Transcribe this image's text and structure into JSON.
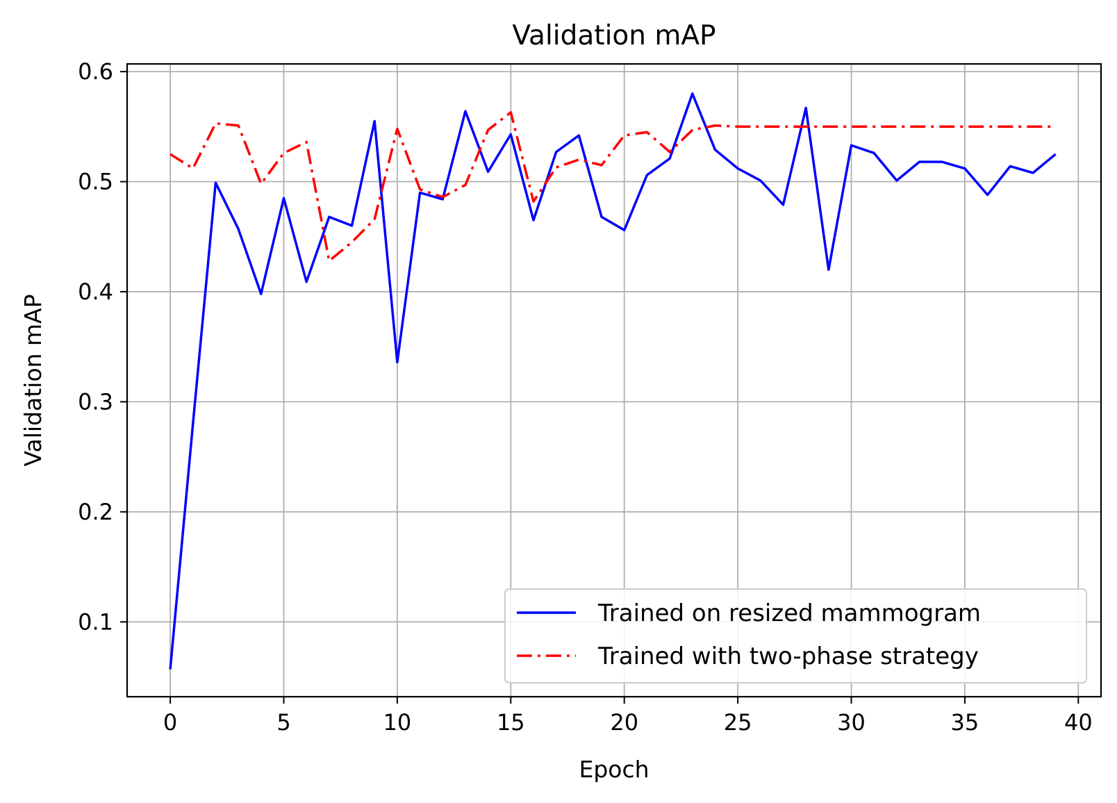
{
  "chart_data": {
    "type": "line",
    "title": "Validation mAP",
    "xlabel": "Epoch",
    "ylabel": "Validation mAP",
    "xlim": [
      -1.9,
      41.0
    ],
    "ylim": [
      0.032,
      0.607
    ],
    "xticks": [
      0,
      5,
      10,
      15,
      20,
      25,
      30,
      35,
      40
    ],
    "xtick_labels": [
      "0",
      "5",
      "10",
      "15",
      "20",
      "25",
      "30",
      "35",
      "40"
    ],
    "yticks": [
      0.1,
      0.2,
      0.3,
      0.4,
      0.5,
      0.6
    ],
    "ytick_labels": [
      "0.1",
      "0.2",
      "0.3",
      "0.4",
      "0.5",
      "0.6"
    ],
    "grid": true,
    "legend_position": "lower-right",
    "x": [
      0,
      1,
      2,
      3,
      4,
      5,
      6,
      7,
      8,
      9,
      10,
      11,
      12,
      13,
      14,
      15,
      16,
      17,
      18,
      19,
      20,
      21,
      22,
      23,
      24,
      25,
      26,
      27,
      28,
      29,
      30,
      31,
      32,
      33,
      34,
      35,
      36,
      37,
      38,
      39
    ],
    "series": [
      {
        "name": "Trained on resized mammogram",
        "color": "#0000ff",
        "linestyle": "solid",
        "values": [
          0.057,
          0.28,
          0.499,
          0.457,
          0.398,
          0.485,
          0.409,
          0.468,
          0.46,
          0.555,
          0.336,
          0.49,
          0.484,
          0.564,
          0.509,
          0.543,
          0.465,
          0.527,
          0.542,
          0.468,
          0.456,
          0.506,
          0.521,
          0.58,
          0.529,
          0.512,
          0.501,
          0.479,
          0.567,
          0.42,
          0.533,
          0.526,
          0.501,
          0.518,
          0.518,
          0.512,
          0.488,
          0.514,
          0.508,
          0.525
        ]
      },
      {
        "name": "Trained with two-phase strategy",
        "color": "#ff0000",
        "linestyle": "dashdot",
        "values": [
          0.525,
          0.512,
          0.553,
          0.551,
          0.498,
          0.526,
          0.536,
          0.428,
          0.445,
          0.466,
          0.548,
          0.493,
          0.486,
          0.497,
          0.547,
          0.563,
          0.482,
          0.513,
          0.52,
          0.515,
          0.542,
          0.545,
          0.527,
          0.547,
          0.551,
          0.55,
          0.55,
          0.55,
          0.55,
          0.55,
          0.55,
          0.55,
          0.55,
          0.55,
          0.55,
          0.55,
          0.55,
          0.55,
          0.55,
          0.55
        ]
      }
    ]
  }
}
